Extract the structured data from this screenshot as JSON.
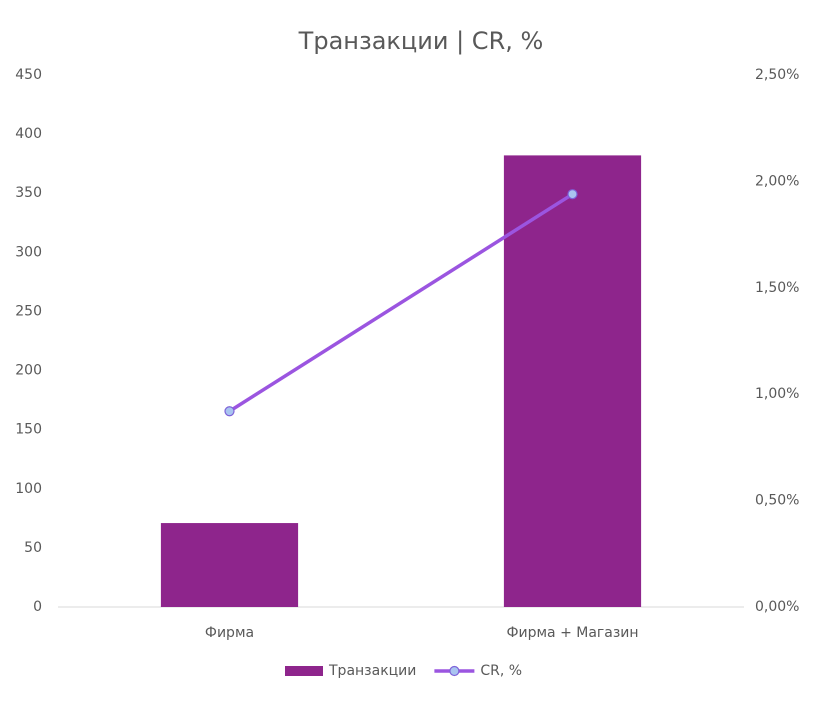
{
  "chart_data": {
    "type": "combo",
    "title": "Транзакции | CR, %",
    "categories": [
      "Фирма",
      "Фирма + Магазин"
    ],
    "series": [
      {
        "name": "Транзакции",
        "type": "bar",
        "color": "#8e258c",
        "values": [
          71,
          382
        ]
      },
      {
        "name": "CR, %",
        "type": "line",
        "axis": "y2",
        "color": "#9b55e0",
        "values": [
          0.92,
          1.94
        ]
      }
    ],
    "ylim": [
      0,
      450
    ],
    "yticks": [
      0,
      50,
      100,
      150,
      200,
      250,
      300,
      350,
      400,
      450
    ],
    "y2lim": [
      0,
      2.5
    ],
    "y2ticks": [
      {
        "value": 0,
        "label": "0,00%"
      },
      {
        "value": 0.5,
        "label": "0,50%"
      },
      {
        "value": 1,
        "label": "1,00%"
      },
      {
        "value": 1.5,
        "label": "1,50%"
      },
      {
        "value": 2,
        "label": "2,00%"
      },
      {
        "value": 2.5,
        "label": "2,50%"
      }
    ],
    "legend": "bottom",
    "grid": false
  }
}
